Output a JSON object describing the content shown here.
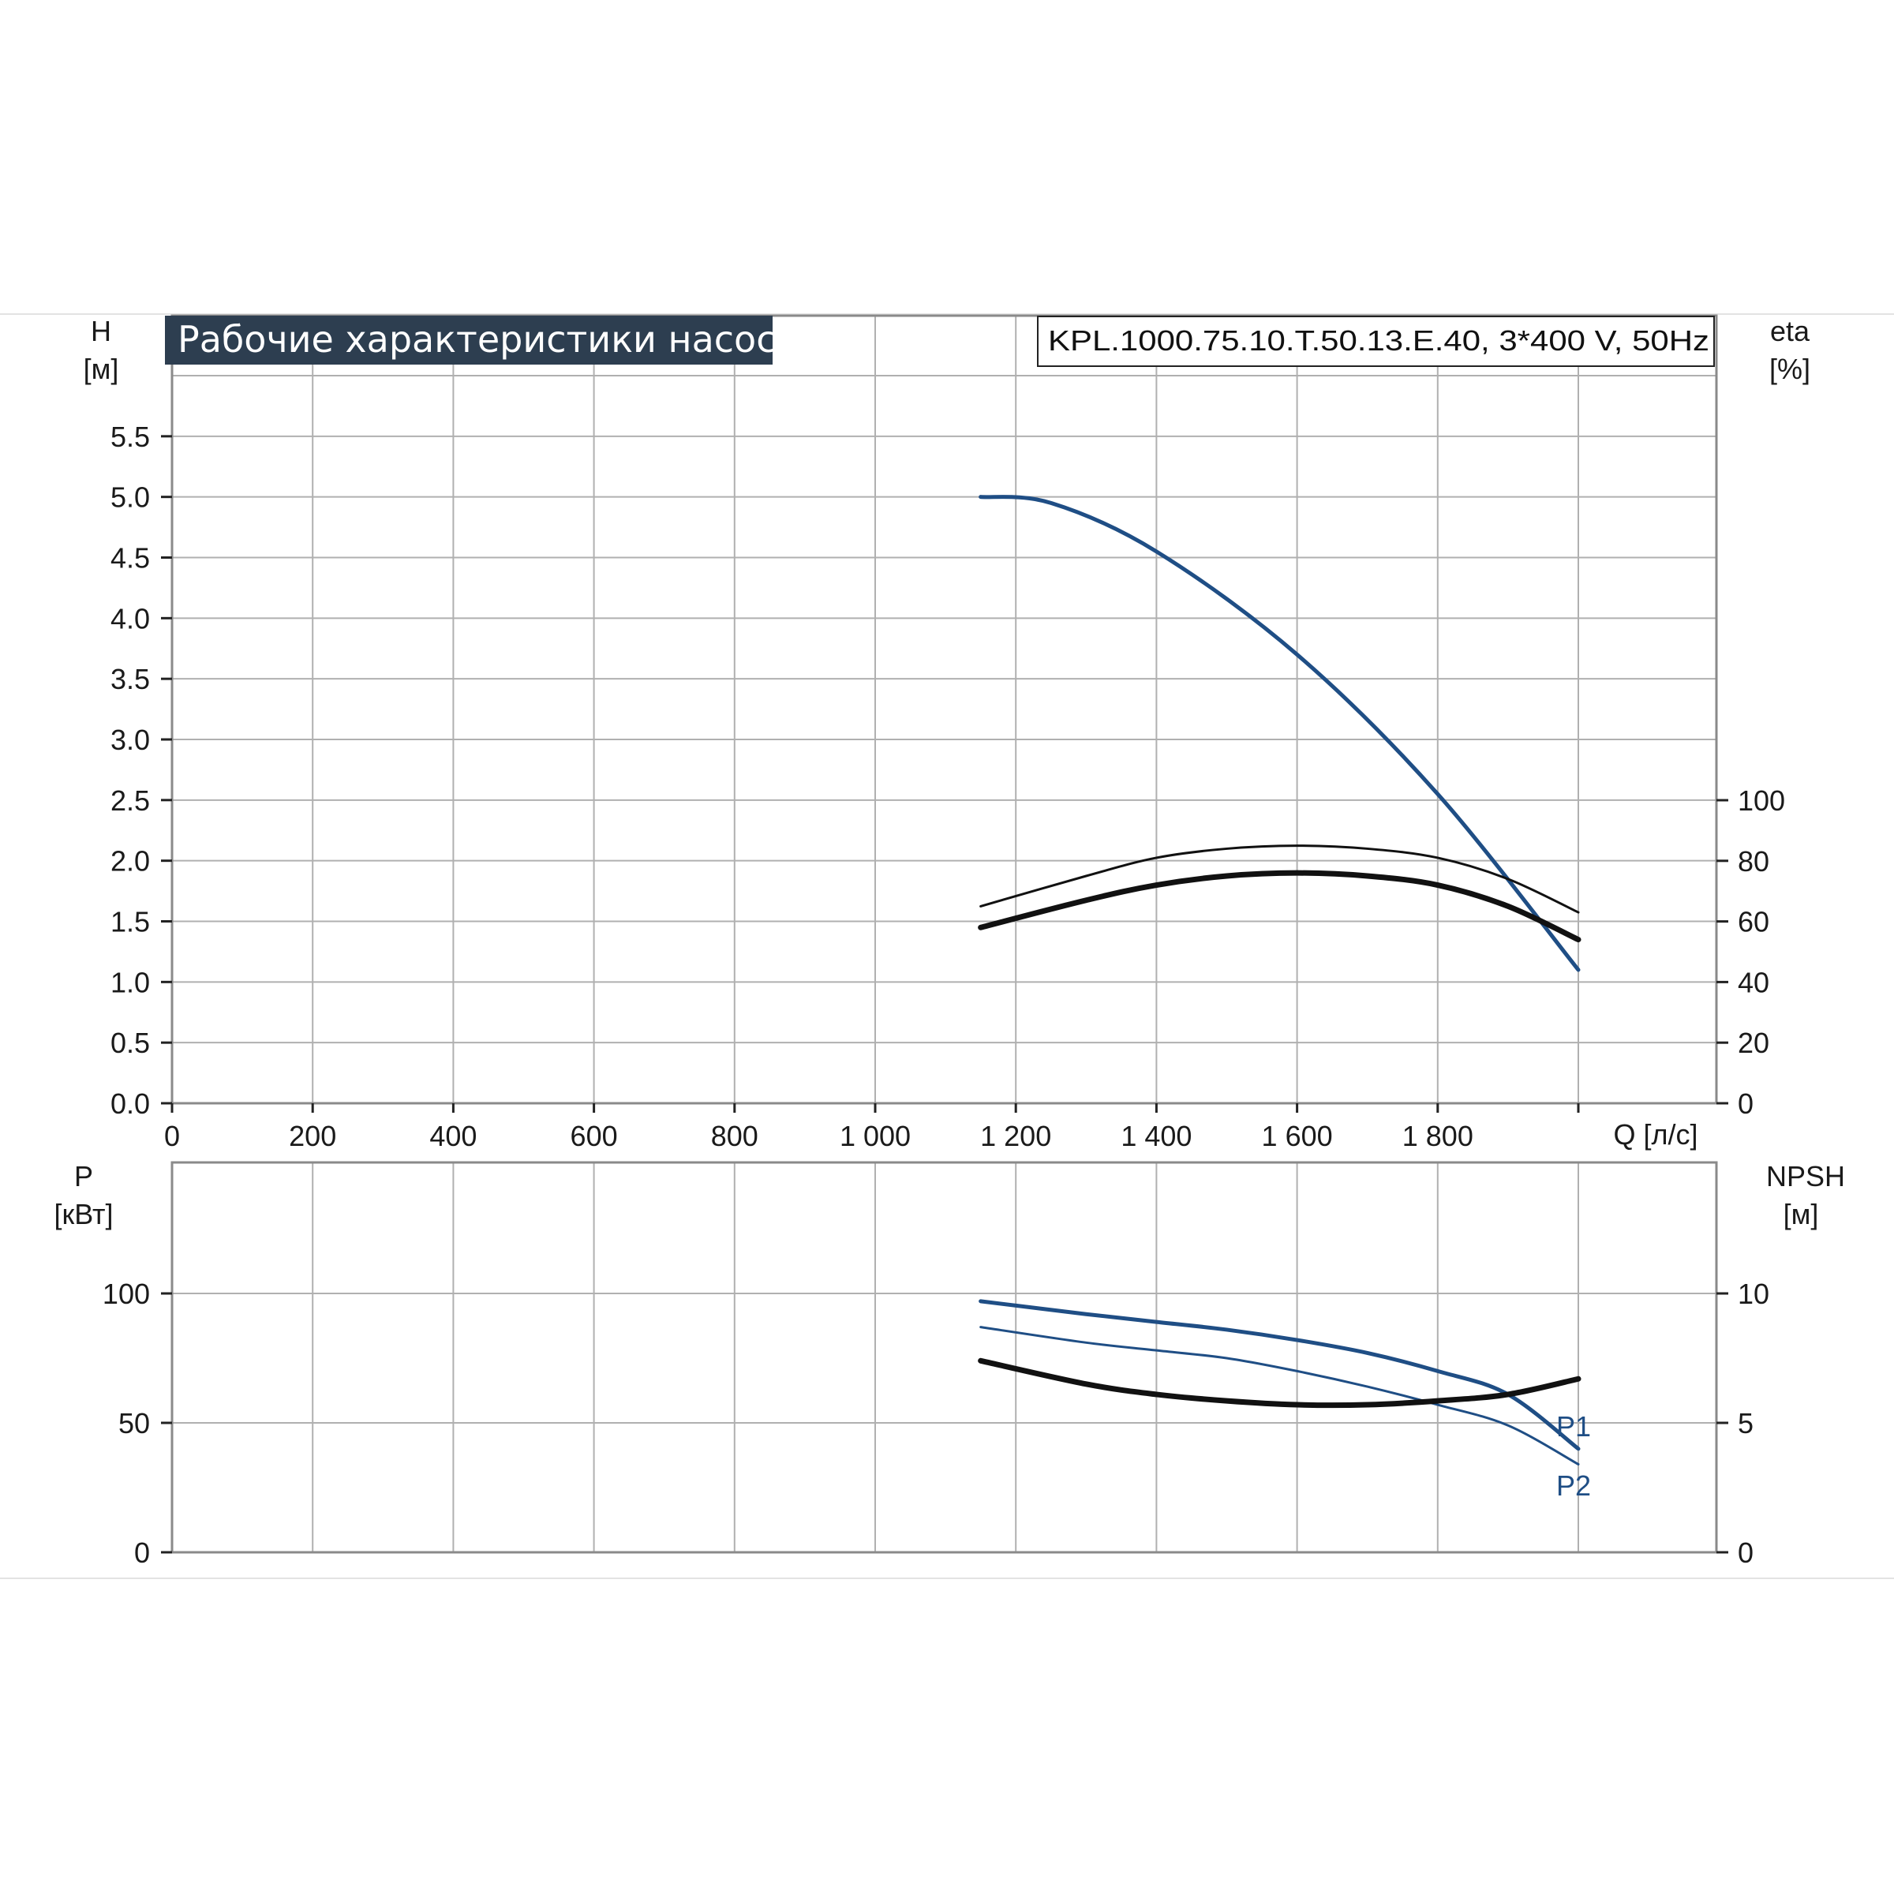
{
  "title": "Рабочие характеристики насоса",
  "model": "KPL.1000.75.10.T.50.13.E.40, 3*400 V, 50Hz",
  "colors": {
    "blue": "#1f4e85",
    "black": "#111111",
    "grid": "#a9a9a9",
    "title_bg": "#2d3e50"
  },
  "x_axis": {
    "unit_label": "Q [л/с]",
    "range": [
      0,
      2000
    ],
    "ticks": [
      {
        "value": 0,
        "label": "0"
      },
      {
        "value": 200,
        "label": "200"
      },
      {
        "value": 400,
        "label": "400"
      },
      {
        "value": 600,
        "label": "600"
      },
      {
        "value": 800,
        "label": "800"
      },
      {
        "value": 1000,
        "label": "1 000"
      },
      {
        "value": 1200,
        "label": "1 200"
      },
      {
        "value": 1400,
        "label": "1 400"
      },
      {
        "value": 1600,
        "label": "1 600"
      },
      {
        "value": 1800,
        "label": "1 800"
      }
    ]
  },
  "top_chart": {
    "left_axis": {
      "name": "H",
      "unit": "[м]",
      "range": [
        0,
        6
      ],
      "ticks": [
        "0.0",
        "0.5",
        "1.0",
        "1.5",
        "2.0",
        "2.5",
        "3.0",
        "3.5",
        "4.0",
        "4.5",
        "5.0",
        "5.5"
      ]
    },
    "right_axis": {
      "name": "eta",
      "unit": "[%]",
      "range": [
        0,
        240
      ],
      "ticks": [
        "0",
        "20",
        "40",
        "60",
        "80",
        "100"
      ]
    }
  },
  "bottom_chart": {
    "left_axis": {
      "name": "P",
      "unit": "[кВт]",
      "range": [
        0,
        150
      ],
      "ticks": [
        "0",
        "50",
        "100"
      ]
    },
    "right_axis": {
      "name": "NPSH",
      "unit": "[м]",
      "range": [
        0,
        15
      ],
      "ticks": [
        "0",
        "5",
        "10"
      ]
    }
  },
  "chart_data": [
    {
      "type": "line",
      "xlabel": "Q [л/с]",
      "ylabel": "H [м]",
      "y2label": "eta [%]",
      "xlim": [
        0,
        2000
      ],
      "ylim": [
        0,
        6
      ],
      "y2lim": [
        0,
        240
      ],
      "grid": true,
      "series": [
        {
          "axis": "left",
          "color": "#1f4e85",
          "width": 5,
          "x": [
            1150,
            1250,
            1400,
            1600,
            1800,
            2000
          ],
          "y": [
            5.0,
            4.95,
            4.55,
            3.7,
            2.55,
            1.1
          ]
        },
        {
          "axis": "right",
          "color": "#111111",
          "width": 3,
          "x": [
            1150,
            1300,
            1400,
            1500,
            1600,
            1700,
            1800,
            1900,
            2000
          ],
          "y": [
            65,
            75,
            81,
            84,
            85,
            84,
            81,
            74,
            63
          ]
        },
        {
          "axis": "right",
          "color": "#111111",
          "width": 7,
          "x": [
            1150,
            1300,
            1400,
            1500,
            1600,
            1700,
            1800,
            1900,
            2000
          ],
          "y": [
            58,
            67,
            72,
            75,
            76,
            75,
            72,
            65,
            54
          ]
        }
      ]
    },
    {
      "type": "line",
      "xlabel": "Q [л/с]",
      "ylabel": "P [кВт]",
      "y2label": "NPSH [м]",
      "xlim": [
        0,
        2000
      ],
      "ylim": [
        0,
        150
      ],
      "y2lim": [
        0,
        15
      ],
      "grid": true,
      "series": [
        {
          "name": "P1",
          "axis": "left",
          "color": "#1f4e85",
          "width": 5,
          "x": [
            1150,
            1300,
            1400,
            1500,
            1600,
            1700,
            1800,
            1900,
            2000
          ],
          "y": [
            97,
            92,
            89,
            86,
            82,
            77,
            70,
            61,
            40
          ]
        },
        {
          "name": "P2",
          "axis": "left",
          "color": "#1f4e85",
          "width": 3,
          "x": [
            1150,
            1300,
            1400,
            1500,
            1600,
            1700,
            1800,
            1900,
            2000
          ],
          "y": [
            87,
            81,
            78,
            75,
            70,
            64,
            57,
            49,
            34
          ]
        },
        {
          "axis": "right",
          "color": "#111111",
          "width": 7,
          "x": [
            1150,
            1300,
            1400,
            1500,
            1600,
            1700,
            1800,
            1900,
            2000
          ],
          "y": [
            7.4,
            6.5,
            6.1,
            5.85,
            5.7,
            5.7,
            5.85,
            6.1,
            6.7
          ]
        }
      ]
    }
  ]
}
